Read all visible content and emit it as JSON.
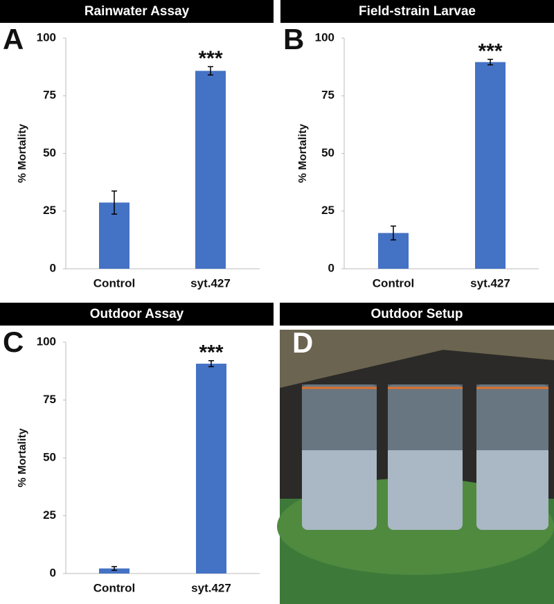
{
  "chart_data": [
    {
      "type": "bar",
      "title": "Rainwater Assay",
      "panel_label": "A",
      "ylabel": "% Mortality",
      "categories": [
        "Control",
        "syt.427"
      ],
      "values": [
        28.7,
        85.8
      ],
      "errors": [
        5,
        1.8
      ],
      "color": "#4472c4",
      "ylim": [
        0,
        100
      ],
      "yticks": [
        0,
        25,
        50,
        75,
        100
      ],
      "grid": false,
      "annotations": [
        {
          "text": "***",
          "category": "syt.427"
        }
      ]
    },
    {
      "type": "bar",
      "title": "Field-strain Larvae",
      "panel_label": "B",
      "ylabel": "% Mortality",
      "categories": [
        "Control",
        "syt.427"
      ],
      "values": [
        15.5,
        89.6
      ],
      "errors": [
        3,
        1.2
      ],
      "color": "#4472c4",
      "ylim": [
        0,
        100
      ],
      "yticks": [
        0,
        25,
        50,
        75,
        100
      ],
      "grid": false,
      "annotations": [
        {
          "text": "***",
          "category": "syt.427"
        }
      ]
    },
    {
      "type": "bar",
      "title": "Outdoor Assay",
      "panel_label": "C",
      "ylabel": "% Mortality",
      "categories": [
        "Control",
        "syt.427"
      ],
      "values": [
        2.2,
        90.7
      ],
      "errors": [
        0.8,
        1.3
      ],
      "color": "#4472c4",
      "ylim": [
        0,
        100
      ],
      "yticks": [
        0,
        25,
        50,
        75,
        100
      ],
      "grid": false,
      "annotations": [
        {
          "text": "***",
          "category": "syt.427"
        }
      ]
    }
  ],
  "photo_panel": {
    "title": "Outdoor Setup",
    "panel_label": "D"
  }
}
